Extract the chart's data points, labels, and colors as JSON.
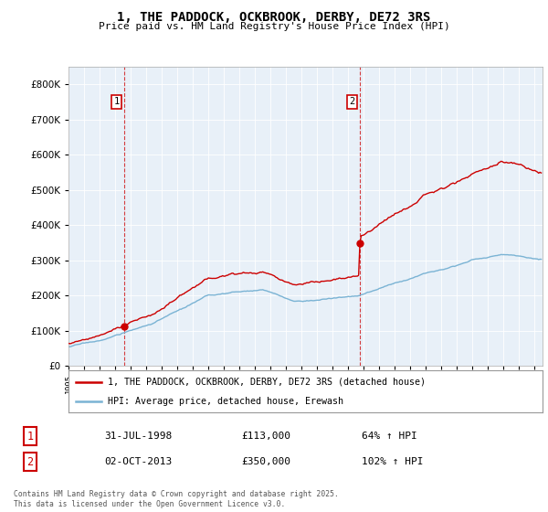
{
  "title": "1, THE PADDOCK, OCKBROOK, DERBY, DE72 3RS",
  "subtitle": "Price paid vs. HM Land Registry's House Price Index (HPI)",
  "property_label": "1, THE PADDOCK, OCKBROOK, DERBY, DE72 3RS (detached house)",
  "hpi_label": "HPI: Average price, detached house, Erewash",
  "footnote": "Contains HM Land Registry data © Crown copyright and database right 2025.\nThis data is licensed under the Open Government Licence v3.0.",
  "sale1_date": "31-JUL-1998",
  "sale1_price": 113000,
  "sale1_hpi": "64% ↑ HPI",
  "sale2_date": "02-OCT-2013",
  "sale2_price": 350000,
  "sale2_hpi": "102% ↑ HPI",
  "sale1_x": 1998.58,
  "sale2_x": 2013.75,
  "ylim_max": 850000,
  "xlim_min": 1995.0,
  "xlim_max": 2025.5,
  "property_color": "#cc0000",
  "hpi_color": "#7ab3d4",
  "dashed_color": "#cc0000",
  "chart_bg": "#e8f0f8",
  "background_color": "#ffffff",
  "grid_color": "#ffffff"
}
